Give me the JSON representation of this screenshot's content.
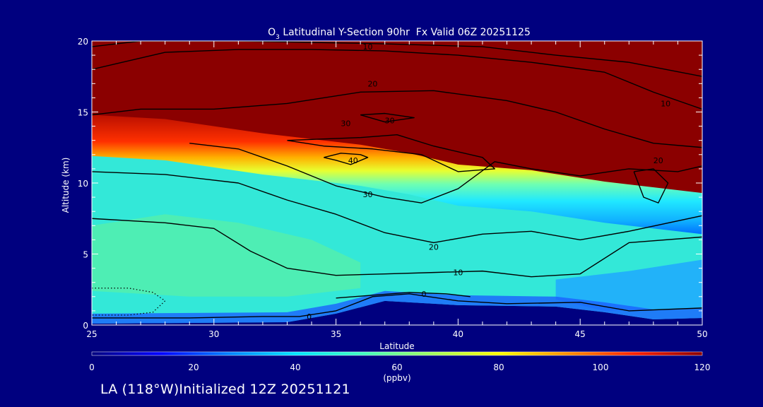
{
  "chart_data": {
    "type": "heatmap",
    "title": "O",
    "title_subscript": "3",
    "title_rest": " Latitudinal Y-Section 90hr  Fx Valid 06Z 20251125",
    "xlabel": "Latitude",
    "ylabel": "Altitude (km)",
    "xlim": [
      25,
      50
    ],
    "ylim": [
      0,
      20
    ],
    "xticks": [
      25,
      30,
      35,
      40,
      45,
      50
    ],
    "yticks": [
      0,
      5,
      10,
      15,
      20
    ],
    "colorbar": {
      "min": 0,
      "max": 120,
      "ticks": [
        0,
        20,
        40,
        60,
        80,
        100,
        120
      ],
      "unit": "(ppbv)",
      "colors": [
        "#00007f",
        "#0000ff",
        "#0080ff",
        "#00e5ff",
        "#40ffc0",
        "#a0ff60",
        "#ffff00",
        "#ff9000",
        "#ff2000",
        "#8b0000"
      ]
    },
    "saturation_altitude_km": {
      "lat": [
        25,
        28,
        32,
        36,
        38,
        40,
        43,
        46,
        50
      ],
      "alt": [
        14.5,
        14.2,
        13.2,
        12.4,
        11.8,
        11.0,
        10.6,
        9.8,
        9.0
      ]
    },
    "surface_minimum_km": {
      "lat": [
        25,
        33,
        35,
        37,
        40,
        44,
        46,
        48,
        50
      ],
      "alt": [
        0.1,
        0.2,
        0.8,
        1.7,
        1.4,
        1.3,
        0.9,
        0.4,
        0.5
      ]
    },
    "contours": [
      {
        "level": "0",
        "label_lat": 33.9,
        "label_alt": 0.6,
        "lat": [
          25,
          29,
          32,
          33.5,
          35,
          36.5,
          38,
          40,
          42,
          45,
          47,
          50
        ],
        "alt": [
          0.5,
          0.5,
          0.6,
          0.6,
          1.0,
          2.0,
          2.2,
          1.7,
          1.5,
          1.6,
          1.0,
          1.2
        ]
      },
      {
        "level": "0",
        "label_lat": 38.6,
        "label_alt": 2.2,
        "lat": [
          35,
          36.5,
          38,
          39.5,
          40.5
        ],
        "alt": [
          1.9,
          2.1,
          2.3,
          2.2,
          2.0
        ]
      },
      {
        "level": "10",
        "label_lat": 40.0,
        "label_alt": 3.7,
        "lat": [
          25,
          28,
          30,
          31.5,
          33,
          35,
          37,
          39,
          41,
          43,
          45,
          47,
          50
        ],
        "alt": [
          7.5,
          7.2,
          6.8,
          5.2,
          4.0,
          3.5,
          3.6,
          3.7,
          3.8,
          3.4,
          3.6,
          5.8,
          6.2
        ]
      },
      {
        "level": "20",
        "label_lat": 39.0,
        "label_alt": 5.5,
        "lat": [
          25,
          28,
          31,
          33,
          35,
          37,
          39,
          41,
          43,
          45,
          47,
          50
        ],
        "alt": [
          10.8,
          10.6,
          10.0,
          8.8,
          7.8,
          6.5,
          5.8,
          6.4,
          6.6,
          6.0,
          6.6,
          7.7
        ]
      },
      {
        "level": "30",
        "label_lat": 36.3,
        "label_alt": 9.2,
        "lat": [
          29,
          31,
          33,
          35,
          37,
          38.5,
          40,
          41.5,
          43,
          45,
          47,
          49,
          50
        ],
        "alt": [
          12.8,
          12.4,
          11.2,
          9.8,
          9.0,
          8.6,
          9.6,
          11.5,
          11.0,
          10.5,
          11.0,
          10.8,
          11.2
        ]
      },
      {
        "level": "40",
        "label_lat": 35.7,
        "label_alt": 11.6,
        "lat": [
          34.5,
          35,
          35.6,
          36.3,
          36.0,
          35.2,
          34.5
        ],
        "alt": [
          11.8,
          11.6,
          11.3,
          11.8,
          12.0,
          12.1,
          11.8
        ]
      },
      {
        "level": "30",
        "label_lat": 35.4,
        "label_alt": 14.2,
        "lat": [
          33,
          34.5,
          36.5,
          38.5,
          40,
          41.5,
          41.0,
          39.0,
          37.5,
          36.0,
          33
        ],
        "alt": [
          13.0,
          12.6,
          12.4,
          12.0,
          10.8,
          11.0,
          11.8,
          12.6,
          13.4,
          13.2,
          13.0
        ]
      },
      {
        "level": "30",
        "label_lat": 37.2,
        "label_alt": 14.4,
        "lat": [
          36.0,
          37.0,
          38.2,
          37.0,
          36.0
        ],
        "alt": [
          14.8,
          14.3,
          14.6,
          14.9,
          14.8
        ]
      },
      {
        "level": "20",
        "label_lat": 36.5,
        "label_alt": 17.0,
        "lat": [
          25,
          27,
          30,
          33,
          36,
          39,
          42,
          44,
          46,
          48,
          50
        ],
        "alt": [
          14.8,
          15.2,
          15.2,
          15.6,
          16.4,
          16.5,
          15.8,
          15.0,
          13.8,
          12.8,
          12.5
        ]
      },
      {
        "level": "10",
        "label_lat": 48.5,
        "label_alt": 15.6,
        "lat": [
          25,
          28,
          31,
          34,
          37,
          40,
          43,
          46,
          48,
          50
        ],
        "alt": [
          18.0,
          19.2,
          19.4,
          19.4,
          19.3,
          19.0,
          18.5,
          17.8,
          16.4,
          15.2
        ]
      },
      {
        "level": "10",
        "label_lat": 36.3,
        "label_alt": 19.6,
        "lat": [
          25,
          27,
          29,
          31,
          34,
          37,
          41,
          44,
          47,
          50
        ],
        "alt": [
          19.6,
          20.0,
          20.0,
          20.0,
          19.9,
          19.8,
          19.6,
          19.0,
          18.5,
          17.5
        ]
      },
      {
        "level": "20",
        "label_lat": 48.2,
        "label_alt": 11.6,
        "lat": [
          47.2,
          48.0,
          48.6,
          48.2,
          47.6,
          47.2
        ],
        "alt": [
          10.8,
          11.0,
          10.0,
          8.6,
          9.0,
          10.8
        ]
      }
    ],
    "dotted_contours": [
      {
        "lat": [
          25,
          26.5,
          27.5,
          28.0,
          27.5,
          26.5,
          25
        ],
        "alt": [
          2.6,
          2.6,
          2.3,
          1.7,
          0.9,
          0.7,
          0.7
        ]
      }
    ]
  },
  "footer": {
    "text": "LA (118°W)Initialized 12Z 20251121"
  }
}
